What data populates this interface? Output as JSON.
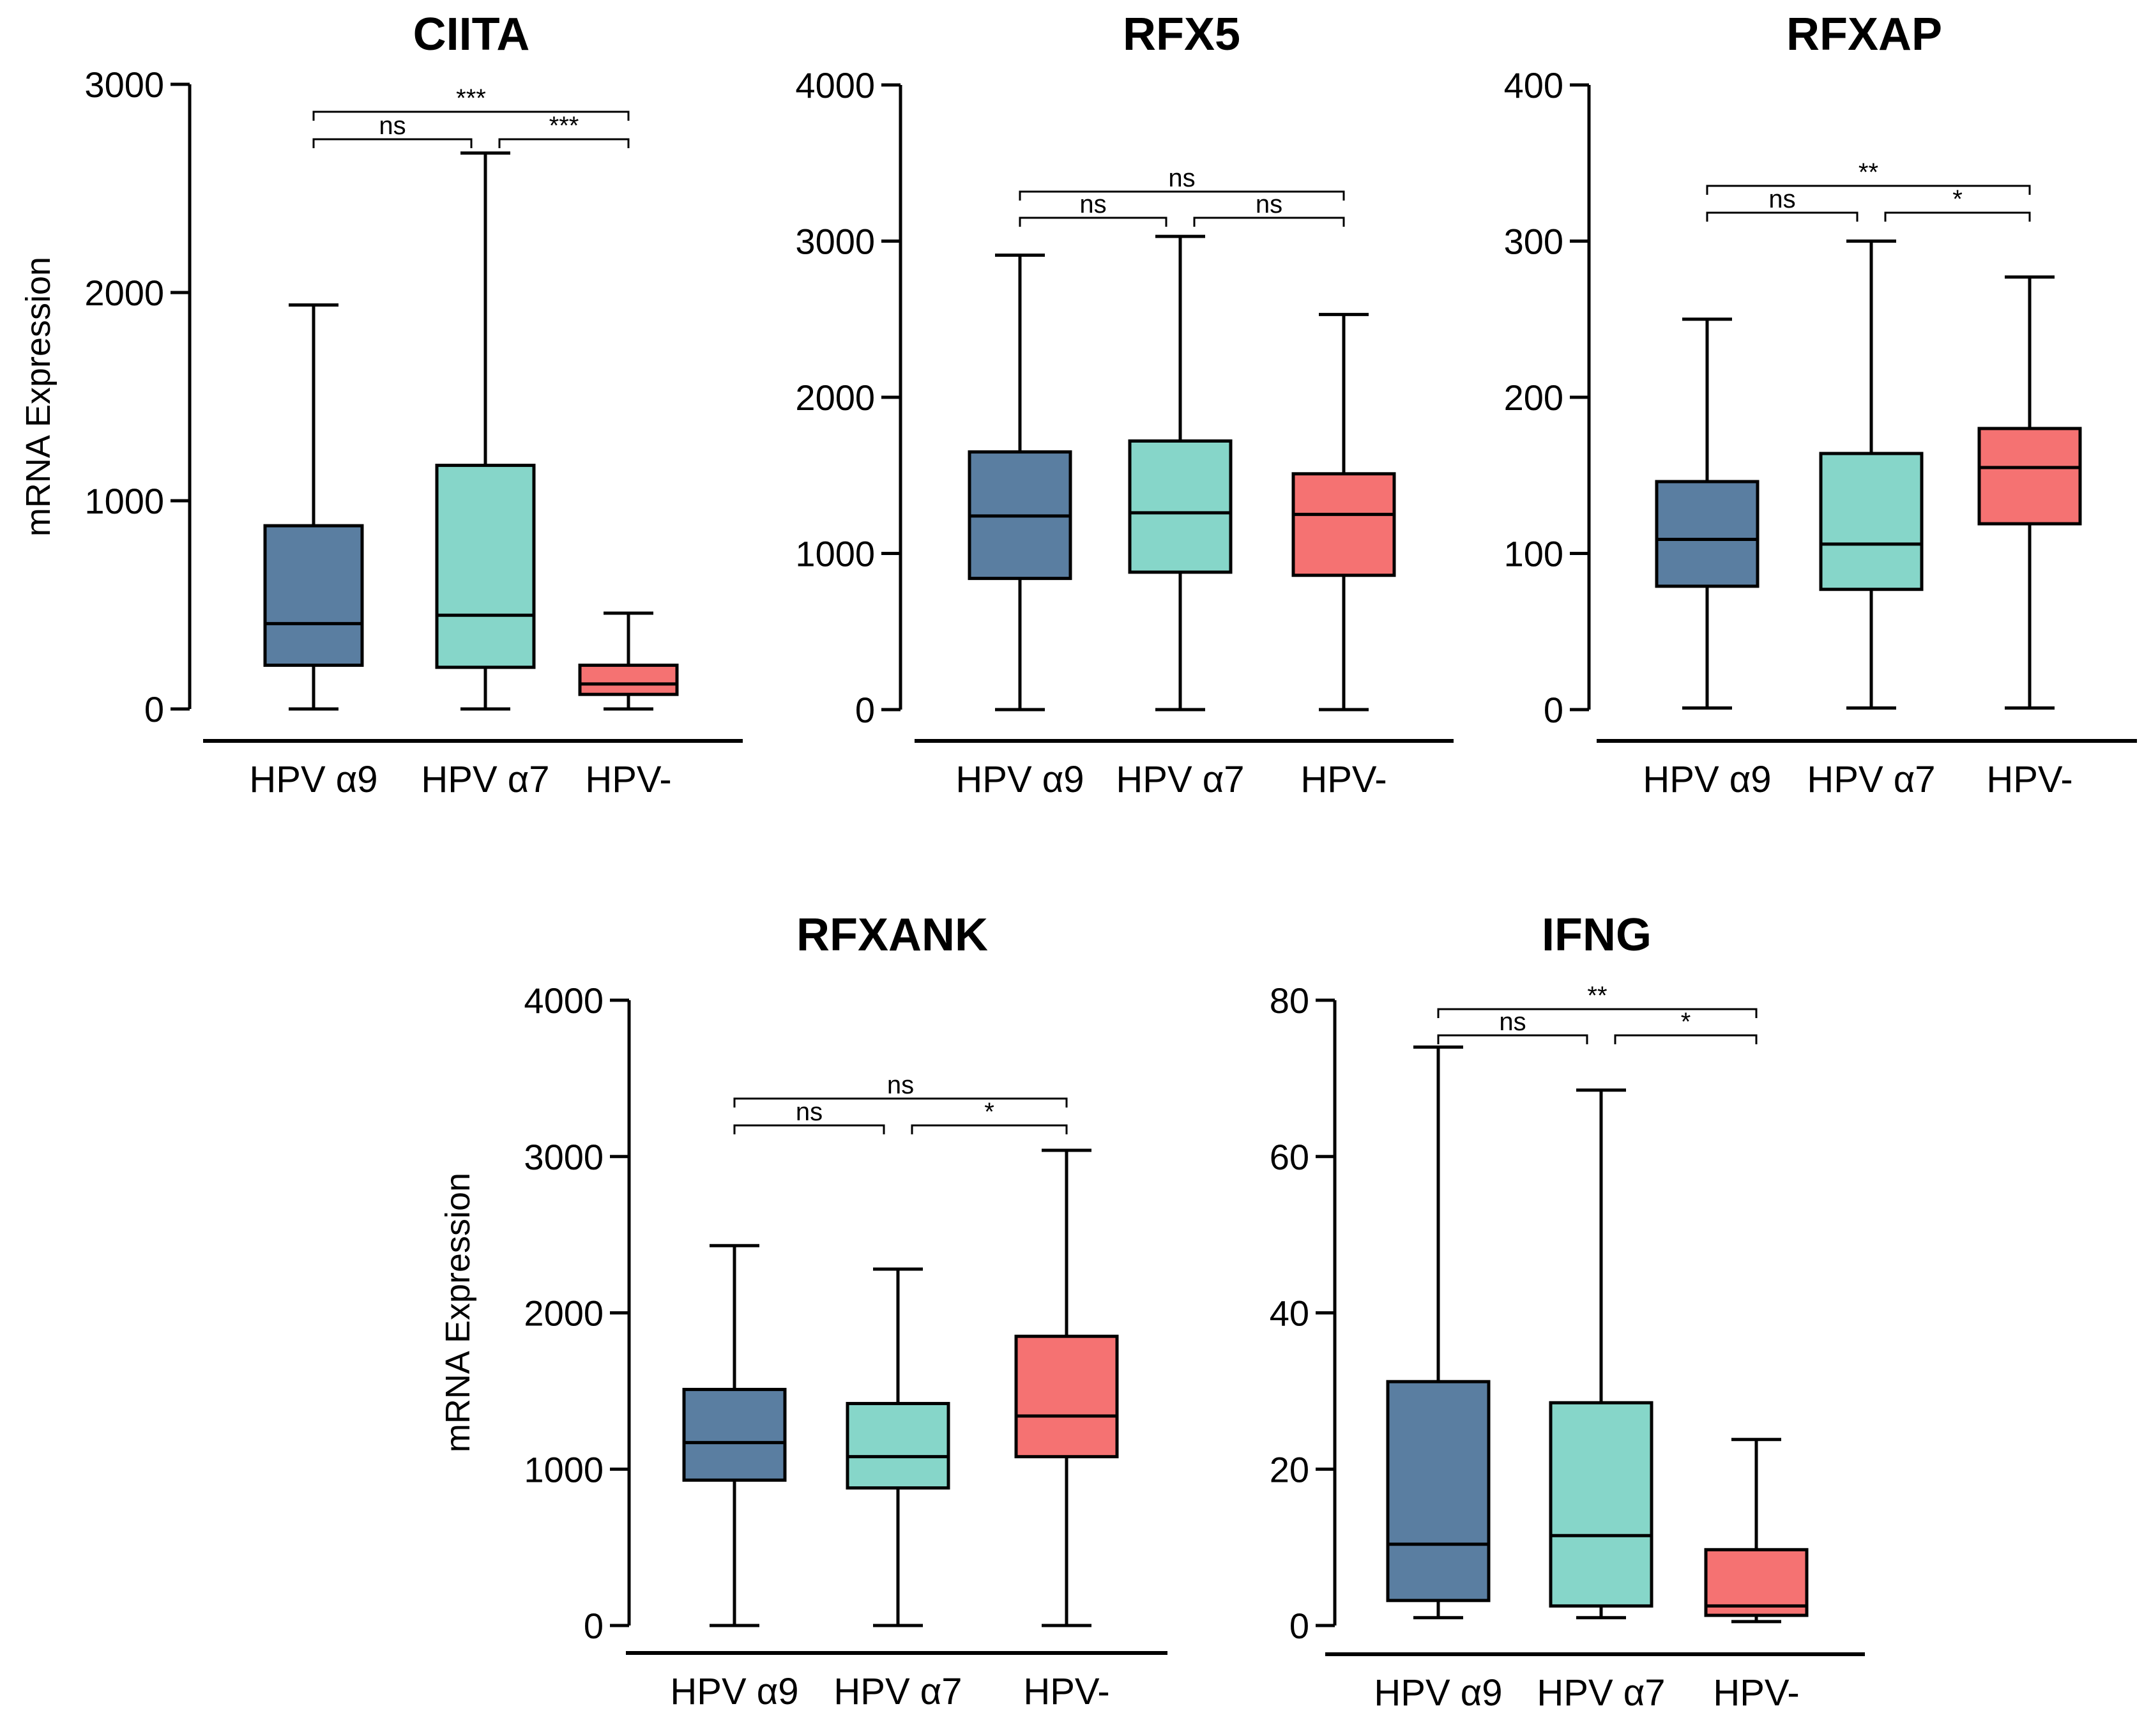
{
  "figure": {
    "ylabel": "mRNA Expression",
    "categories": [
      "HPV α9",
      "HPV α7",
      "HPV-"
    ],
    "colors": {
      "HPV α9": "#5a7ea1",
      "HPV α7": "#86d6c9",
      "HPV-": "#f57272"
    }
  },
  "chart_data": [
    {
      "type": "box",
      "title": "CIITA",
      "ylabel": "mRNA Expression",
      "ylim": [
        0,
        3000
      ],
      "yticks": [
        0,
        1000,
        2000,
        3000
      ],
      "yticklabels": [
        "0",
        "1000",
        "2000",
        "3000"
      ],
      "categories": [
        "HPV α9",
        "HPV α7",
        "HPV-"
      ],
      "boxes": [
        {
          "name": "HPV α9",
          "min": 0,
          "q1": 210,
          "median": 410,
          "q3": 880,
          "max": 1940
        },
        {
          "name": "HPV α7",
          "min": 0,
          "q1": 200,
          "median": 450,
          "q3": 1170,
          "max": 2670
        },
        {
          "name": "HPV-",
          "min": 0,
          "q1": 70,
          "median": 120,
          "q3": 210,
          "max": 460
        }
      ],
      "comparisons": [
        {
          "from": 0,
          "to": 2,
          "label": "***"
        },
        {
          "from": 0,
          "to": 1,
          "label": "ns"
        },
        {
          "from": 1,
          "to": 2,
          "label": "***"
        }
      ]
    },
    {
      "type": "box",
      "title": "RFX5",
      "ylabel": "",
      "ylim": [
        0,
        4000
      ],
      "yticks": [
        0,
        1000,
        2000,
        3000,
        4000
      ],
      "yticklabels": [
        "0",
        "1000",
        "2000",
        "3000",
        "4000"
      ],
      "categories": [
        "HPV α9",
        "HPV α7",
        "HPV-"
      ],
      "boxes": [
        {
          "name": "HPV α9",
          "min": 0,
          "q1": 840,
          "median": 1240,
          "q3": 1650,
          "max": 2910
        },
        {
          "name": "HPV α7",
          "min": 0,
          "q1": 880,
          "median": 1260,
          "q3": 1720,
          "max": 3030
        },
        {
          "name": "HPV-",
          "min": 0,
          "q1": 860,
          "median": 1250,
          "q3": 1510,
          "max": 2530
        }
      ],
      "comparisons": [
        {
          "from": 0,
          "to": 2,
          "label": "ns"
        },
        {
          "from": 0,
          "to": 1,
          "label": "ns"
        },
        {
          "from": 1,
          "to": 2,
          "label": "ns"
        }
      ]
    },
    {
      "type": "box",
      "title": "RFXAP",
      "ylabel": "",
      "ylim": [
        0,
        400
      ],
      "yticks": [
        0,
        100,
        200,
        300,
        400
      ],
      "yticklabels": [
        "0",
        "100",
        "200",
        "300",
        "400"
      ],
      "categories": [
        "HPV α9",
        "HPV α7",
        "HPV-"
      ],
      "boxes": [
        {
          "name": "HPV α9",
          "min": 1,
          "q1": 79,
          "median": 109,
          "q3": 146,
          "max": 250
        },
        {
          "name": "HPV α7",
          "min": 1,
          "q1": 77,
          "median": 106,
          "q3": 164,
          "max": 300
        },
        {
          "name": "HPV-",
          "min": 1,
          "q1": 119,
          "median": 155,
          "q3": 180,
          "max": 277
        }
      ],
      "comparisons": [
        {
          "from": 0,
          "to": 2,
          "label": "**"
        },
        {
          "from": 0,
          "to": 1,
          "label": "ns"
        },
        {
          "from": 1,
          "to": 2,
          "label": "*"
        }
      ]
    },
    {
      "type": "box",
      "title": "RFXANK",
      "ylabel": "mRNA Expression",
      "ylim": [
        0,
        4000
      ],
      "yticks": [
        0,
        1000,
        2000,
        3000,
        4000
      ],
      "yticklabels": [
        "0",
        "1000",
        "2000",
        "3000",
        "4000"
      ],
      "categories": [
        "HPV α9",
        "HPV α7",
        "HPV-"
      ],
      "boxes": [
        {
          "name": "HPV α9",
          "min": 0,
          "q1": 930,
          "median": 1170,
          "q3": 1510,
          "max": 2430
        },
        {
          "name": "HPV α7",
          "min": 0,
          "q1": 880,
          "median": 1080,
          "q3": 1420,
          "max": 2280
        },
        {
          "name": "HPV-",
          "min": 0,
          "q1": 1080,
          "median": 1340,
          "q3": 1850,
          "max": 3040
        }
      ],
      "comparisons": [
        {
          "from": 0,
          "to": 2,
          "label": "ns"
        },
        {
          "from": 0,
          "to": 1,
          "label": "ns"
        },
        {
          "from": 1,
          "to": 2,
          "label": "*"
        }
      ]
    },
    {
      "type": "box",
      "title": "IFNG",
      "ylabel": "",
      "ylim": [
        0,
        80
      ],
      "yticks": [
        0,
        20,
        40,
        60,
        80
      ],
      "yticklabels": [
        "0",
        "20",
        "40",
        "60",
        "80"
      ],
      "categories": [
        "HPV α9",
        "HPV α7",
        "HPV-"
      ],
      "boxes": [
        {
          "name": "HPV α9",
          "min": 1,
          "q1": 3.2,
          "median": 10.4,
          "q3": 31.2,
          "max": 74
        },
        {
          "name": "HPV α7",
          "min": 1,
          "q1": 2.5,
          "median": 11.5,
          "q3": 28.5,
          "max": 68.5
        },
        {
          "name": "HPV-",
          "min": 0.5,
          "q1": 1.3,
          "median": 2.5,
          "q3": 9.7,
          "max": 23.8
        }
      ],
      "comparisons": [
        {
          "from": 0,
          "to": 2,
          "label": "**"
        },
        {
          "from": 0,
          "to": 1,
          "label": "ns"
        },
        {
          "from": 1,
          "to": 2,
          "label": "*"
        }
      ]
    }
  ]
}
